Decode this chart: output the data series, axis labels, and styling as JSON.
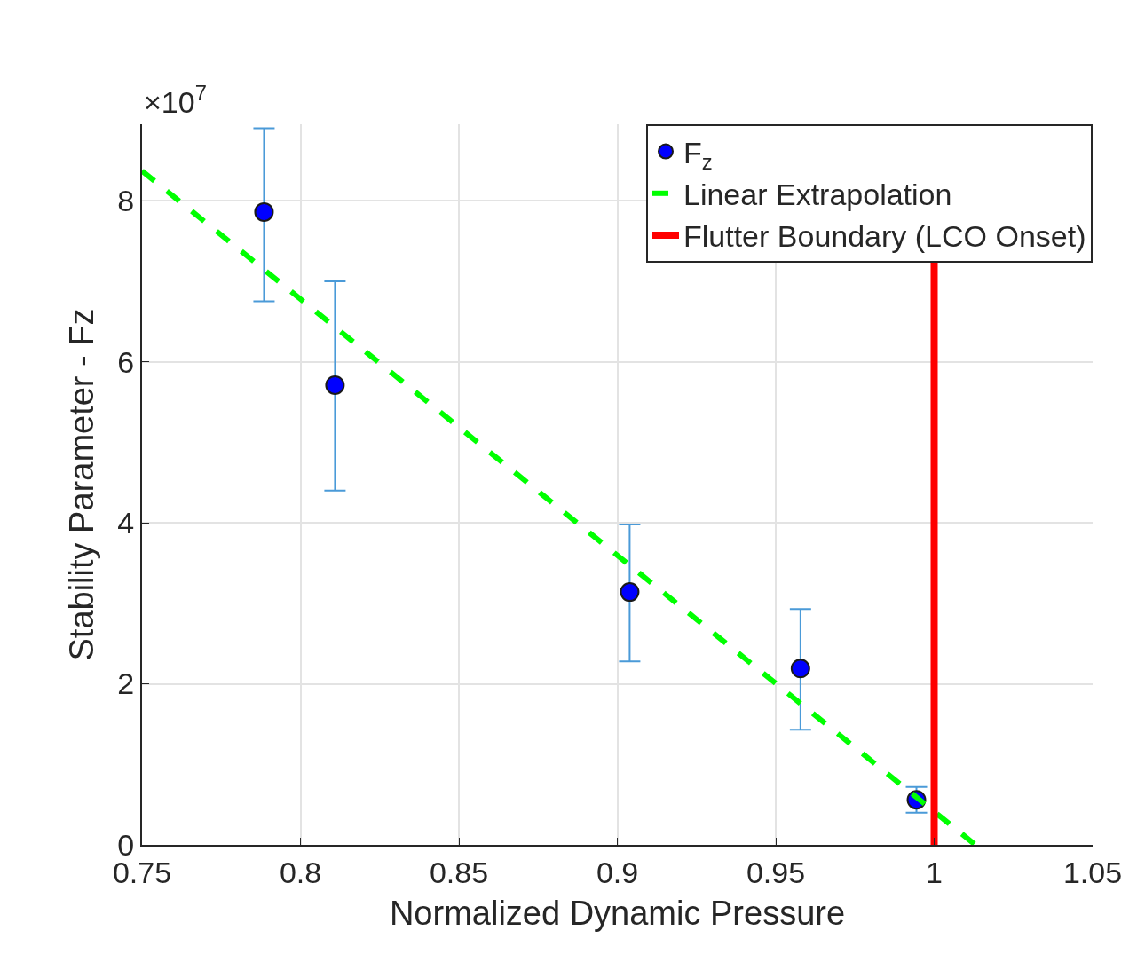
{
  "chart_data": {
    "type": "scatter",
    "xlabel": "Normalized Dynamic Pressure",
    "ylabel": "Stability Parameter - Fz",
    "annotations": [
      "×10$^{7}$"
    ],
    "xlim": [
      0.75,
      1.05
    ],
    "xticks": [
      0.75,
      0.8,
      0.85,
      0.9,
      0.95,
      1,
      1.05
    ],
    "ylim": [
      0,
      8.95
    ],
    "yticks": [
      0,
      2,
      4,
      6,
      8
    ],
    "grid": true,
    "legend": "top right",
    "marker": "circle",
    "series": [
      {
        "name": "F$_{z}$",
        "color": "#0000ff",
        "x": [
          0.7885,
          0.8109,
          0.9039,
          0.9578,
          0.9944
        ],
        "values": [
          7.86,
          5.71,
          3.14,
          2.19,
          0.56
        ],
        "errors": [
          [
            6.75,
            8.9
          ],
          [
            4.4,
            7.0
          ],
          [
            2.28,
            3.98
          ],
          [
            1.43,
            2.93
          ],
          [
            0.4,
            0.72
          ]
        ]
      },
      {
        "name": "Linear Extrapolation",
        "type": "line",
        "color": "#00ff00",
        "line_style": "dashed",
        "marker": "none",
        "x": [
          0.75,
          1.013
        ],
        "values": [
          8.37,
          0
        ]
      }
    ],
    "ref_lines": [
      {
        "axis": "x",
        "value": 1,
        "label": "Flutter Boundary (LCO Onset)",
        "color": "#ff0000"
      }
    ]
  }
}
